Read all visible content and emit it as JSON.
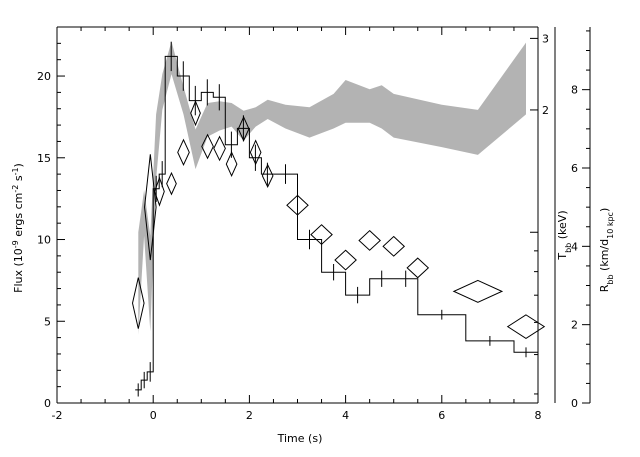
{
  "chart_data": {
    "type": "line",
    "title": "",
    "xlabel": "Time (s)",
    "xlim": [
      -2,
      8
    ],
    "x_ticks": [
      -2,
      0,
      2,
      4,
      6,
      8
    ],
    "grid": false,
    "axes": {
      "flux": {
        "label_parts": [
          "Flux (10",
          "-9",
          " ergs cm",
          "-2",
          " s",
          "-1",
          ")"
        ],
        "ylim": [
          0,
          23
        ],
        "ticks": [
          0,
          5,
          10,
          15,
          20
        ]
      },
      "temperature": {
        "label_main": "T",
        "label_sub": "bb",
        "label_unit": " (keV)",
        "scale": "log",
        "ylim": [
          0.38,
          3.2
        ],
        "ticks": [
          1,
          2,
          3
        ],
        "tick_labels": [
          "",
          "2",
          "3"
        ]
      },
      "radius": {
        "label_main": "R",
        "label_sub": "bb",
        "label_unit_parts": [
          " (km/d",
          "10 kpc",
          ")"
        ],
        "ylim": [
          0,
          9.6
        ],
        "ticks": [
          0,
          2,
          4,
          6,
          8
        ]
      }
    },
    "series": [
      {
        "kind": "histogram",
        "axis": "flux",
        "bins": [
          {
            "x0": -0.375,
            "x1": -0.25,
            "y": 0.8,
            "err": 0.4
          },
          {
            "x0": -0.25,
            "x1": -0.125,
            "y": 1.4,
            "err": 0.5
          },
          {
            "x0": -0.125,
            "x1": 0.0,
            "y": 1.9,
            "err": 0.6
          },
          {
            "x0": 0.0,
            "x1": 0.125,
            "y": 13.1,
            "err": 0.8
          },
          {
            "x0": 0.125,
            "x1": 0.25,
            "y": 14.0,
            "err": 0.8
          },
          {
            "x0": 0.25,
            "x1": 0.5,
            "y": 21.2,
            "err": 0.9
          },
          {
            "x0": 0.5,
            "x1": 0.75,
            "y": 20.0,
            "err": 0.9
          },
          {
            "x0": 0.75,
            "x1": 1.0,
            "y": 18.5,
            "err": 0.9
          },
          {
            "x0": 1.0,
            "x1": 1.25,
            "y": 19.0,
            "err": 0.8
          },
          {
            "x0": 1.25,
            "x1": 1.5,
            "y": 18.7,
            "err": 0.8
          },
          {
            "x0": 1.5,
            "x1": 1.75,
            "y": 15.8,
            "err": 0.8
          },
          {
            "x0": 1.75,
            "x1": 2.0,
            "y": 16.8,
            "err": 0.8
          },
          {
            "x0": 2.0,
            "x1": 2.25,
            "y": 15.0,
            "err": 0.8
          },
          {
            "x0": 2.25,
            "x1": 2.5,
            "y": 14.0,
            "err": 0.7
          },
          {
            "x0": 2.5,
            "x1": 3.0,
            "y": 14.0,
            "err": 0.6
          },
          {
            "x0": 3.0,
            "x1": 3.5,
            "y": 10.0,
            "err": 0.6
          },
          {
            "x0": 3.5,
            "x1": 4.0,
            "y": 8.0,
            "err": 0.5
          },
          {
            "x0": 4.0,
            "x1": 4.5,
            "y": 6.6,
            "err": 0.5
          },
          {
            "x0": 4.5,
            "x1": 5.0,
            "y": 7.6,
            "err": 0.5
          },
          {
            "x0": 5.0,
            "x1": 5.5,
            "y": 7.6,
            "err": 0.5
          },
          {
            "x0": 5.5,
            "x1": 6.5,
            "y": 5.4,
            "err": 0.3
          },
          {
            "x0": 6.5,
            "x1": 7.5,
            "y": 3.8,
            "err": 0.3
          },
          {
            "x0": 7.5,
            "x1": 8.0,
            "y": 3.1,
            "err": 0.3
          }
        ]
      },
      {
        "kind": "band",
        "axis": "temperature",
        "points": [
          {
            "x": -0.31,
            "lo": 0.56,
            "hi": 1.0
          },
          {
            "x": -0.19,
            "lo": 0.98,
            "hi": 1.27
          },
          {
            "x": -0.06,
            "lo": 0.57,
            "hi": 0.98
          },
          {
            "x": 0.06,
            "lo": 1.35,
            "hi": 1.95
          },
          {
            "x": 0.19,
            "lo": 2.0,
            "hi": 2.45
          },
          {
            "x": 0.38,
            "lo": 2.45,
            "hi": 2.95
          },
          {
            "x": 0.63,
            "lo": 1.95,
            "hi": 2.28
          },
          {
            "x": 0.88,
            "lo": 1.43,
            "hi": 1.79
          },
          {
            "x": 1.13,
            "lo": 1.72,
            "hi": 2.08
          },
          {
            "x": 1.38,
            "lo": 1.78,
            "hi": 2.1
          },
          {
            "x": 1.63,
            "lo": 1.82,
            "hi": 2.08
          },
          {
            "x": 1.88,
            "lo": 1.68,
            "hi": 1.99
          },
          {
            "x": 2.13,
            "lo": 1.82,
            "hi": 2.03
          },
          {
            "x": 2.38,
            "lo": 1.9,
            "hi": 2.12
          },
          {
            "x": 2.75,
            "lo": 1.8,
            "hi": 2.06
          },
          {
            "x": 3.25,
            "lo": 1.71,
            "hi": 2.03
          },
          {
            "x": 3.75,
            "lo": 1.8,
            "hi": 2.19
          },
          {
            "x": 4.0,
            "lo": 1.86,
            "hi": 2.37
          },
          {
            "x": 4.5,
            "lo": 1.86,
            "hi": 2.25
          },
          {
            "x": 4.75,
            "lo": 1.8,
            "hi": 2.3
          },
          {
            "x": 5.0,
            "lo": 1.71,
            "hi": 2.19
          },
          {
            "x": 6.0,
            "lo": 1.62,
            "hi": 2.06
          },
          {
            "x": 6.75,
            "lo": 1.55,
            "hi": 2.0
          },
          {
            "x": 7.75,
            "lo": 1.95,
            "hi": 2.93
          }
        ]
      },
      {
        "kind": "diamonds",
        "axis": "radius",
        "points": [
          {
            "x": -0.31,
            "y": 2.55,
            "hw": 0.12,
            "hh": 0.65
          },
          {
            "x": -0.06,
            "y": 5.0,
            "hw": 0.12,
            "hh": 1.35
          },
          {
            "x": 0.13,
            "y": 5.4,
            "hw": 0.1,
            "hh": 0.35
          },
          {
            "x": 0.38,
            "y": 5.6,
            "hw": 0.1,
            "hh": 0.27
          },
          {
            "x": 0.63,
            "y": 6.4,
            "hw": 0.12,
            "hh": 0.32
          },
          {
            "x": 0.88,
            "y": 7.4,
            "hw": 0.1,
            "hh": 0.3
          },
          {
            "x": 1.13,
            "y": 6.55,
            "hw": 0.12,
            "hh": 0.3
          },
          {
            "x": 1.38,
            "y": 6.5,
            "hw": 0.12,
            "hh": 0.3
          },
          {
            "x": 1.63,
            "y": 6.1,
            "hw": 0.11,
            "hh": 0.3
          },
          {
            "x": 1.88,
            "y": 7.0,
            "hw": 0.11,
            "hh": 0.3
          },
          {
            "x": 2.13,
            "y": 6.4,
            "hw": 0.11,
            "hh": 0.3
          },
          {
            "x": 2.38,
            "y": 5.8,
            "hw": 0.11,
            "hh": 0.28
          },
          {
            "x": 3.0,
            "y": 5.05,
            "hw": 0.22,
            "hh": 0.25
          },
          {
            "x": 3.5,
            "y": 4.3,
            "hw": 0.22,
            "hh": 0.25
          },
          {
            "x": 4.0,
            "y": 3.65,
            "hw": 0.22,
            "hh": 0.25
          },
          {
            "x": 4.5,
            "y": 4.15,
            "hw": 0.22,
            "hh": 0.25
          },
          {
            "x": 5.0,
            "y": 4.0,
            "hw": 0.22,
            "hh": 0.25
          },
          {
            "x": 5.5,
            "y": 3.45,
            "hw": 0.22,
            "hh": 0.25
          },
          {
            "x": 6.75,
            "y": 2.85,
            "hw": 0.5,
            "hh": 0.28
          },
          {
            "x": 7.75,
            "y": 1.95,
            "hw": 0.38,
            "hh": 0.3
          }
        ]
      }
    ],
    "colors": {
      "band": "#b3b3b3",
      "line": "#000000"
    }
  }
}
